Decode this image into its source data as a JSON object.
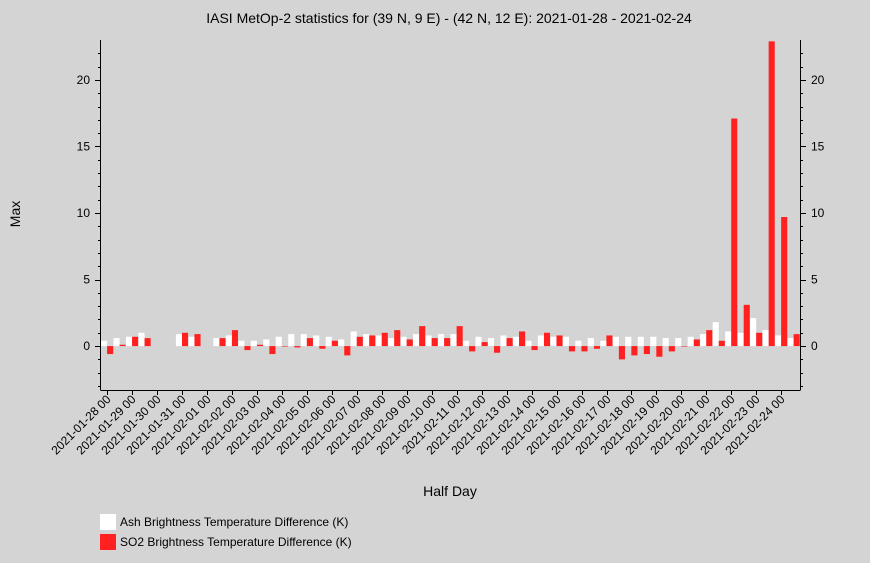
{
  "chart_data": {
    "type": "bar",
    "title": "IASI MetOp-2 statistics for (39 N, 9 E) - (42 N, 12 E): 2021-01-28 - 2021-02-24",
    "xlabel": "Half Day",
    "ylabel": "Max",
    "ylim": [
      -3.3,
      23
    ],
    "yticks": [
      0,
      5,
      10,
      15,
      20
    ],
    "grid": false,
    "legend_position": "bottom-left",
    "x_tick_labels": [
      "2021-01-28 00",
      "2021-01-29 00",
      "2021-01-30 00",
      "2021-01-31 00",
      "2021-02-01 00",
      "2021-02-02 00",
      "2021-02-03 00",
      "2021-02-04 00",
      "2021-02-05 00",
      "2021-02-06 00",
      "2021-02-07 00",
      "2021-02-08 00",
      "2021-02-09 00",
      "2021-02-10 00",
      "2021-02-11 00",
      "2021-02-12 00",
      "2021-02-13 00",
      "2021-02-14 00",
      "2021-02-15 00",
      "2021-02-16 00",
      "2021-02-17 00",
      "2021-02-18 00",
      "2021-02-19 00",
      "2021-02-20 00",
      "2021-02-21 00",
      "2021-02-22 00",
      "2021-02-23 00",
      "2021-02-24 00"
    ],
    "x": [
      "2021-01-28 00",
      "2021-01-28 12",
      "2021-01-29 00",
      "2021-01-29 12",
      "2021-01-30 00",
      "2021-01-30 12",
      "2021-01-31 00",
      "2021-01-31 12",
      "2021-02-01 00",
      "2021-02-01 12",
      "2021-02-02 00",
      "2021-02-02 12",
      "2021-02-03 00",
      "2021-02-03 12",
      "2021-02-04 00",
      "2021-02-04 12",
      "2021-02-05 00",
      "2021-02-05 12",
      "2021-02-06 00",
      "2021-02-06 12",
      "2021-02-07 00",
      "2021-02-07 12",
      "2021-02-08 00",
      "2021-02-08 12",
      "2021-02-09 00",
      "2021-02-09 12",
      "2021-02-10 00",
      "2021-02-10 12",
      "2021-02-11 00",
      "2021-02-11 12",
      "2021-02-12 00",
      "2021-02-12 12",
      "2021-02-13 00",
      "2021-02-13 12",
      "2021-02-14 00",
      "2021-02-14 12",
      "2021-02-15 00",
      "2021-02-15 12",
      "2021-02-16 00",
      "2021-02-16 12",
      "2021-02-17 00",
      "2021-02-17 12",
      "2021-02-18 00",
      "2021-02-18 12",
      "2021-02-19 00",
      "2021-02-19 12",
      "2021-02-20 00",
      "2021-02-20 12",
      "2021-02-21 00",
      "2021-02-21 12",
      "2021-02-22 00",
      "2021-02-22 12",
      "2021-02-23 00",
      "2021-02-23 12",
      "2021-02-24 00",
      "2021-02-24 12"
    ],
    "series": [
      {
        "name": "Ash Brightness Temperature Difference (K)",
        "color": "#ffffff",
        "values": [
          0.4,
          0.6,
          0.7,
          1.0,
          null,
          null,
          0.9,
          0.7,
          null,
          0.6,
          0.8,
          0.4,
          0.4,
          0.5,
          0.7,
          0.9,
          0.9,
          0.8,
          0.7,
          0.5,
          1.1,
          0.9,
          0.8,
          0.6,
          0.7,
          0.9,
          0.8,
          0.9,
          0.9,
          0.4,
          0.7,
          0.6,
          0.8,
          0.7,
          0.4,
          0.8,
          0.7,
          0.7,
          0.4,
          0.6,
          0.4,
          0.7,
          0.7,
          0.7,
          0.7,
          0.6,
          0.6,
          0.7,
          0.9,
          1.8,
          1.1,
          1.0,
          2.1,
          1.2,
          0.8,
          0.6
        ]
      },
      {
        "name": "SO2 Brightness Temperature Difference (K)",
        "color": "#ff2020",
        "values": [
          -0.6,
          0.1,
          0.7,
          0.6,
          null,
          null,
          1.0,
          0.9,
          null,
          0.6,
          1.2,
          -0.3,
          0.1,
          -0.6,
          0.0,
          -0.1,
          0.6,
          -0.2,
          0.4,
          -0.7,
          0.7,
          0.8,
          1.0,
          1.2,
          0.5,
          1.5,
          0.6,
          0.6,
          1.5,
          -0.4,
          0.3,
          -0.5,
          0.6,
          1.1,
          -0.3,
          1.0,
          0.8,
          -0.4,
          -0.4,
          -0.2,
          0.8,
          -1.0,
          -0.7,
          -0.6,
          -0.8,
          -0.4,
          0.0,
          0.5,
          1.2,
          0.4,
          17.1,
          3.1,
          1.0,
          22.9,
          9.7,
          0.9
        ]
      }
    ]
  }
}
